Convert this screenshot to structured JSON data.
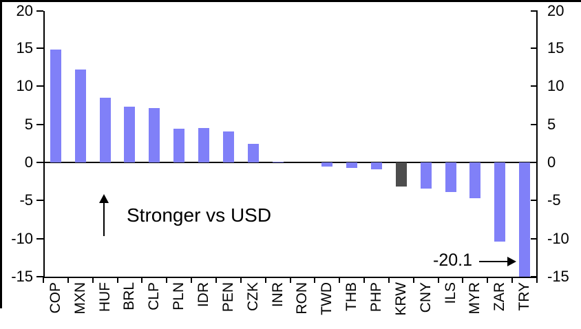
{
  "figure": {
    "background": "#FFFFFF",
    "border_color": "#000000"
  },
  "chart_data": {
    "type": "bar",
    "title": "",
    "xlabel": "",
    "ylabel": "",
    "categories": [
      "COP",
      "MXN",
      "HUF",
      "BRL",
      "CLP",
      "PLN",
      "IDR",
      "PEN",
      "CZK",
      "INR",
      "RON",
      "TWD",
      "THB",
      "PHP",
      "KRW",
      "CNY",
      "ILS",
      "MYR",
      "ZAR",
      "TRY"
    ],
    "values": [
      14.8,
      12.2,
      8.5,
      7.3,
      7.1,
      4.4,
      4.5,
      4.1,
      2.4,
      0.1,
      0.0,
      -0.5,
      -0.7,
      -0.9,
      -3.2,
      -3.4,
      -3.9,
      -4.7,
      -10.4,
      -20.1
    ],
    "highlighted_category": "KRW",
    "clipped_category": "TRY",
    "clipped_value_label": "-20.1",
    "bar_color": "#8080F8",
    "highlight_color": "#4D4D4D",
    "ylim": [
      -15,
      20
    ],
    "yticks_left": [
      "20",
      "15",
      "10",
      "5",
      "0",
      "-5",
      "-10",
      "-15"
    ],
    "yticks_right": [
      "20",
      "15",
      "10",
      "5",
      "0",
      "-5",
      "-10",
      "-15"
    ],
    "ytick_values": [
      20,
      15,
      10,
      5,
      0,
      -5,
      -10,
      -15
    ],
    "grid": "off",
    "legend": "none"
  },
  "annotations": {
    "stronger_text": "Stronger vs USD",
    "clipped_text": "-20.1"
  }
}
